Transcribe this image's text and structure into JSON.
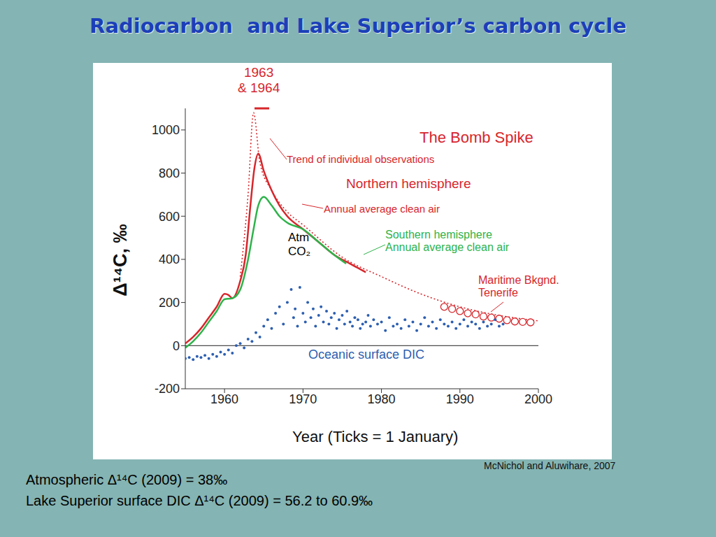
{
  "chart_data": {
    "type": "line",
    "title": "Radiocarbon  and Lake Superior’s carbon cycle",
    "x_label": "Year (Ticks = 1 January)",
    "y_label": "Δ¹⁴C, ‰",
    "xlim": [
      1955,
      2000
    ],
    "ylim": [
      -200,
      1100
    ],
    "xticks": [
      1960,
      1970,
      1980,
      1990,
      2000
    ],
    "yticks": [
      -200,
      0,
      200,
      400,
      600,
      800,
      1000
    ],
    "hline": 0,
    "series": [
      {
        "type": "line",
        "color": "#d7262b",
        "line_style": "solid",
        "x": [
          1955,
          1956,
          1957,
          1958,
          1959,
          1960,
          1960.5,
          1961,
          1962,
          1962.7,
          1963.3,
          1963.8,
          1964.3,
          1965,
          1966,
          1967,
          1968,
          1970,
          1972,
          1974,
          1976,
          1978
        ],
        "values": [
          10,
          40,
          80,
          130,
          180,
          240,
          235,
          220,
          300,
          420,
          650,
          820,
          890,
          810,
          720,
          650,
          600,
          540,
          480,
          420,
          380,
          340
        ]
      },
      {
        "type": "line",
        "color": "#2db34a",
        "line_style": "solid",
        "x": [
          1955,
          1956,
          1957,
          1958,
          1959,
          1960,
          1961,
          1962,
          1963,
          1963.7,
          1964.3,
          1965,
          1966,
          1967,
          1968,
          1970,
          1972,
          1974,
          1975.5
        ],
        "values": [
          -10,
          20,
          60,
          110,
          160,
          215,
          220,
          260,
          400,
          540,
          650,
          690,
          650,
          600,
          570,
          540,
          480,
          420,
          380
        ]
      },
      {
        "type": "line",
        "color": "#d7262b",
        "line_style": "dotted",
        "x": [
          1962,
          1963,
          1963.7,
          1964.5,
          1966,
          1968,
          1970,
          1975,
          1980,
          1985,
          1990,
          1995,
          2000
        ],
        "values": [
          320,
          700,
          1080,
          850,
          720,
          620,
          560,
          410,
          320,
          240,
          180,
          140,
          115
        ]
      },
      {
        "type": "scatter",
        "color": "#d7262b",
        "marker": "open_circle",
        "x": [
          1988,
          1989,
          1990,
          1991,
          1992,
          1993,
          1994,
          1995,
          1996,
          1997,
          1998,
          1999
        ],
        "values": [
          180,
          170,
          160,
          150,
          145,
          135,
          130,
          125,
          118,
          112,
          110,
          108
        ]
      },
      {
        "type": "scatter",
        "color": "#2d5fb0",
        "marker": "dot",
        "x": [
          1955,
          1955.5,
          1956,
          1956.5,
          1957,
          1957.5,
          1958,
          1958.5,
          1959,
          1959.5,
          1960,
          1960.5,
          1961,
          1961.5,
          1962,
          1962.5,
          1963,
          1963.5,
          1964,
          1964.5,
          1965,
          1965.5,
          1966,
          1966.5,
          1967,
          1967.5,
          1968,
          1968.5,
          1968.8,
          1969,
          1969.3,
          1969.6,
          1970,
          1970.3,
          1970.6,
          1971,
          1971.3,
          1971.6,
          1972,
          1972.3,
          1972.6,
          1973,
          1973.3,
          1973.6,
          1974,
          1974.3,
          1974.6,
          1975,
          1975.3,
          1975.6,
          1976,
          1976.3,
          1976.6,
          1977,
          1977.3,
          1977.6,
          1978,
          1978.3,
          1978.6,
          1979,
          1979.5,
          1980,
          1980.5,
          1981,
          1981.5,
          1982,
          1982.5,
          1983,
          1983.5,
          1984,
          1984.5,
          1985,
          1985.5,
          1986,
          1986.5,
          1987,
          1987.5,
          1988,
          1988.5,
          1989,
          1989.5,
          1990,
          1990.5,
          1991,
          1991.5,
          1992,
          1992.5,
          1993,
          1993.5,
          1994,
          1994.5,
          1995,
          1995.5
        ],
        "values": [
          -60,
          -55,
          -65,
          -50,
          -55,
          -45,
          -60,
          -40,
          -50,
          -30,
          -40,
          -20,
          -35,
          0,
          10,
          -10,
          30,
          20,
          60,
          40,
          90,
          120,
          80,
          150,
          180,
          100,
          200,
          260,
          130,
          170,
          90,
          270,
          150,
          110,
          200,
          130,
          170,
          90,
          140,
          180,
          110,
          160,
          100,
          130,
          150,
          80,
          120,
          140,
          100,
          160,
          110,
          90,
          130,
          120,
          80,
          100,
          110,
          140,
          90,
          120,
          100,
          110,
          70,
          130,
          90,
          100,
          80,
          120,
          90,
          110,
          70,
          100,
          130,
          90,
          110,
          80,
          120,
          100,
          90,
          110,
          80,
          100,
          120,
          90,
          110,
          100,
          80,
          110,
          90,
          100,
          120,
          90,
          100
        ]
      }
    ],
    "annotations": [
      "1963\n& 1964",
      "The Bomb Spike",
      "Trend of individual observations",
      "Northern hemisphere",
      "Annual average clean air",
      "Atm\nCO₂",
      "Southern hemisphere\nAnnual average clean air",
      "Maritime Bkgnd.\nTenerife",
      "Oceanic surface DIC"
    ],
    "source": "McNichol and Aluwihare, 2007",
    "notes": [
      "Atmospheric Δ¹⁴C (2009) = 38‰",
      "Lake Superior surface DIC Δ¹⁴C (2009) = 56.2 to 60.9‰"
    ]
  }
}
